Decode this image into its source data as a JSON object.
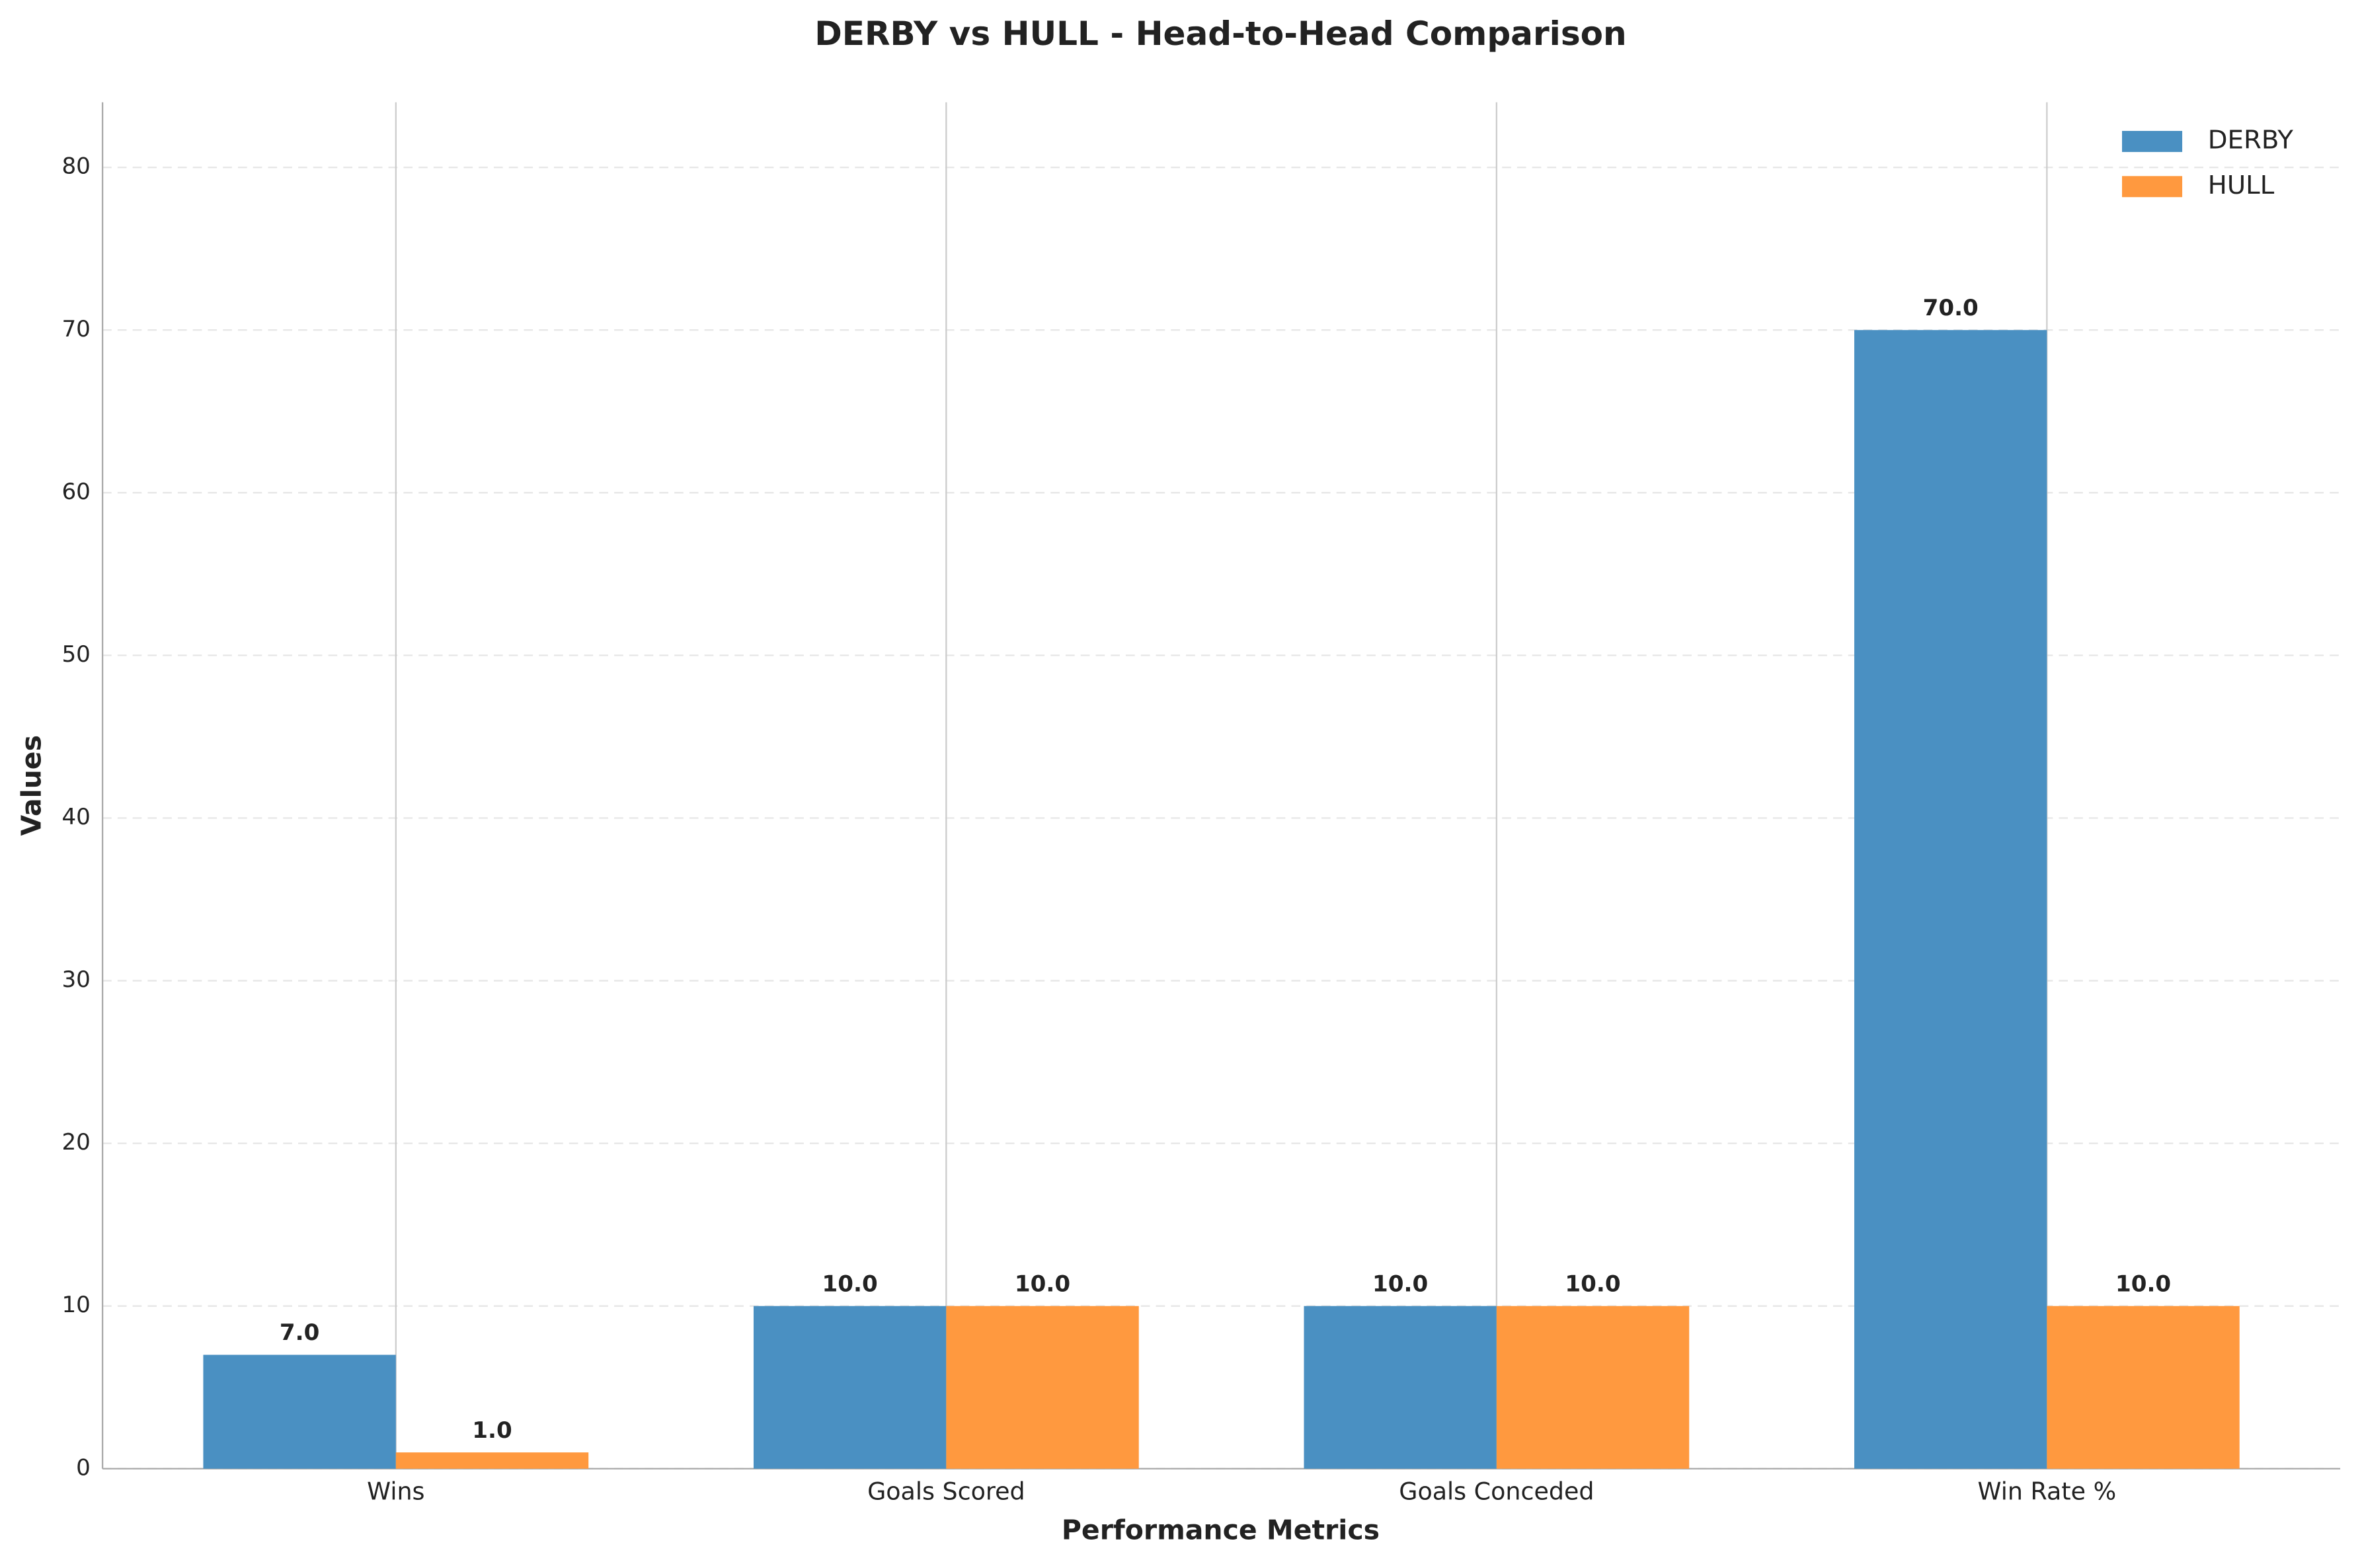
{
  "chart_data": {
    "type": "bar",
    "title": "DERBY vs HULL - Head-to-Head Comparison",
    "xlabel": "Performance Metrics",
    "ylabel": "Values",
    "categories": [
      "Wins",
      "Goals Scored",
      "Goals Conceded",
      "Win Rate %"
    ],
    "series": [
      {
        "name": "DERBY",
        "color": "#4a90c2",
        "values": [
          7,
          10,
          10,
          70
        ],
        "value_labels": [
          "7.0",
          "10.0",
          "10.0",
          "70.0"
        ]
      },
      {
        "name": "HULL",
        "color": "#ff993f",
        "values": [
          1,
          10,
          10,
          10
        ],
        "value_labels": [
          "1.0",
          "10.0",
          "10.0",
          "10.0"
        ]
      }
    ],
    "ylim": [
      0,
      84
    ],
    "yticks": [
      0,
      10,
      20,
      30,
      40,
      50,
      60,
      70,
      80
    ],
    "grid": true,
    "legend": "upper right"
  }
}
